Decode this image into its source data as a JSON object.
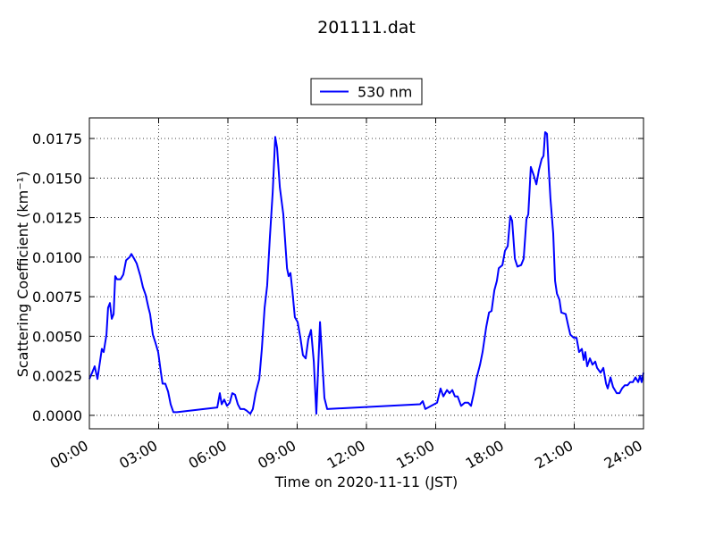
{
  "chart_data": {
    "type": "line",
    "title": "201111.dat",
    "x_label": "Time on 2020-11-11 (JST)",
    "y_label": "Scattering Coefficient (km⁻¹)",
    "legend_loc": "top",
    "grid": true,
    "xlim": [
      0,
      24
    ],
    "ylim": [
      -0.00085,
      0.0188
    ],
    "xticks": [
      {
        "value": 0,
        "label": "00:00"
      },
      {
        "value": 3,
        "label": "03:00"
      },
      {
        "value": 6,
        "label": "06:00"
      },
      {
        "value": 9,
        "label": "09:00"
      },
      {
        "value": 12,
        "label": "12:00"
      },
      {
        "value": 15,
        "label": "15:00"
      },
      {
        "value": 18,
        "label": "18:00"
      },
      {
        "value": 21,
        "label": "21:00"
      },
      {
        "value": 24,
        "label": "24:00"
      }
    ],
    "yticks": [
      {
        "value": 0,
        "label": "0.0000"
      },
      {
        "value": 0.0025,
        "label": "0.0025"
      },
      {
        "value": 0.005,
        "label": "0.0050"
      },
      {
        "value": 0.0075,
        "label": "0.0075"
      },
      {
        "value": 0.01,
        "label": "0.0100"
      },
      {
        "value": 0.0125,
        "label": "0.0125"
      },
      {
        "value": 0.015,
        "label": "0.0150"
      },
      {
        "value": 0.0175,
        "label": "0.0175"
      }
    ],
    "x": [
      0,
      0.12,
      0.23,
      0.35,
      0.46,
      0.54,
      0.62,
      0.74,
      0.81,
      0.89,
      0.97,
      1.05,
      1.12,
      1.2,
      1.35,
      1.47,
      1.59,
      1.74,
      1.82,
      1.94,
      2.05,
      2.21,
      2.32,
      2.44,
      2.56,
      2.63,
      2.75,
      2.86,
      2.98,
      3.1,
      3.17,
      3.29,
      3.41,
      3.52,
      3.64,
      3.79,
      5.54,
      5.65,
      5.73,
      5.84,
      5.96,
      6.08,
      6.19,
      6.31,
      6.43,
      6.54,
      6.7,
      6.81,
      6.97,
      7.08,
      7.2,
      7.36,
      7.47,
      7.59,
      7.7,
      7.82,
      7.94,
      8.05,
      8.13,
      8.25,
      8.4,
      8.56,
      8.63,
      8.71,
      8.79,
      8.9,
      9.02,
      9.14,
      9.25,
      9.37,
      9.48,
      9.6,
      9.72,
      9.83,
      9.99,
      10.1,
      10.18,
      10.3,
      14.32,
      14.44,
      14.55,
      15.06,
      15.21,
      15.33,
      15.49,
      15.6,
      15.72,
      15.83,
      15.95,
      16.1,
      16.26,
      16.41,
      16.53,
      16.65,
      16.76,
      16.92,
      17.03,
      17.19,
      17.31,
      17.42,
      17.54,
      17.65,
      17.73,
      17.89,
      18.0,
      18.12,
      18.23,
      18.31,
      18.43,
      18.54,
      18.7,
      18.81,
      18.93,
      19.01,
      19.12,
      19.24,
      19.36,
      19.47,
      19.59,
      19.67,
      19.74,
      19.82,
      19.9,
      19.97,
      20.09,
      20.17,
      20.25,
      20.36,
      20.44,
      20.63,
      20.75,
      20.83,
      20.98,
      21.1,
      21.21,
      21.33,
      21.41,
      21.48,
      21.56,
      21.68,
      21.79,
      21.91,
      21.99,
      22.14,
      22.26,
      22.38,
      22.45,
      22.57,
      22.68,
      22.84,
      22.96,
      23.07,
      23.19,
      23.31,
      23.42,
      23.54,
      23.65,
      23.77,
      23.85,
      23.92,
      24.0
    ],
    "series": [
      {
        "name": "530 nm",
        "color": "#0000ff",
        "values": [
          0.0023,
          0.0027,
          0.0031,
          0.0023,
          0.0034,
          0.0042,
          0.004,
          0.0051,
          0.0068,
          0.0071,
          0.0061,
          0.0064,
          0.0088,
          0.0086,
          0.0086,
          0.0089,
          0.0098,
          0.01,
          0.0102,
          0.0099,
          0.0096,
          0.0088,
          0.0081,
          0.0076,
          0.0068,
          0.0064,
          0.0051,
          0.0046,
          0.004,
          0.0027,
          0.002,
          0.002,
          0.0015,
          0.0007,
          0.0002,
          0.0002,
          0.0005,
          0.0014,
          0.0007,
          0.001,
          0.0006,
          0.0008,
          0.0014,
          0.0013,
          0.0007,
          0.0004,
          0.0004,
          0.0003,
          0.0001,
          0.0004,
          0.0014,
          0.0023,
          0.0042,
          0.0068,
          0.0082,
          0.0113,
          0.0141,
          0.0176,
          0.0169,
          0.0144,
          0.0127,
          0.0093,
          0.0088,
          0.009,
          0.0079,
          0.0062,
          0.0059,
          0.0049,
          0.0038,
          0.0036,
          0.0048,
          0.0054,
          0.0034,
          0.0001,
          0.0059,
          0.0031,
          0.0011,
          0.0004,
          0.0007,
          0.0009,
          0.0004,
          0.0008,
          0.0017,
          0.0012,
          0.0016,
          0.0014,
          0.0016,
          0.0012,
          0.0012,
          0.0006,
          0.0008,
          0.0008,
          0.0006,
          0.0014,
          0.0023,
          0.0032,
          0.004,
          0.0056,
          0.0065,
          0.0066,
          0.0079,
          0.0085,
          0.0093,
          0.0095,
          0.0104,
          0.0107,
          0.0126,
          0.0123,
          0.0099,
          0.0094,
          0.0095,
          0.0099,
          0.0124,
          0.0127,
          0.0157,
          0.0152,
          0.0146,
          0.0155,
          0.0162,
          0.0164,
          0.0179,
          0.0178,
          0.0155,
          0.0137,
          0.0115,
          0.0085,
          0.0077,
          0.0073,
          0.0065,
          0.0064,
          0.0056,
          0.0051,
          0.0049,
          0.0049,
          0.004,
          0.0042,
          0.0035,
          0.004,
          0.0031,
          0.0036,
          0.0032,
          0.0034,
          0.003,
          0.0027,
          0.003,
          0.002,
          0.0017,
          0.0024,
          0.0018,
          0.0014,
          0.0014,
          0.0017,
          0.0019,
          0.0019,
          0.0021,
          0.0021,
          0.0024,
          0.0021,
          0.0025,
          0.0021,
          0.0027
        ]
      }
    ]
  }
}
